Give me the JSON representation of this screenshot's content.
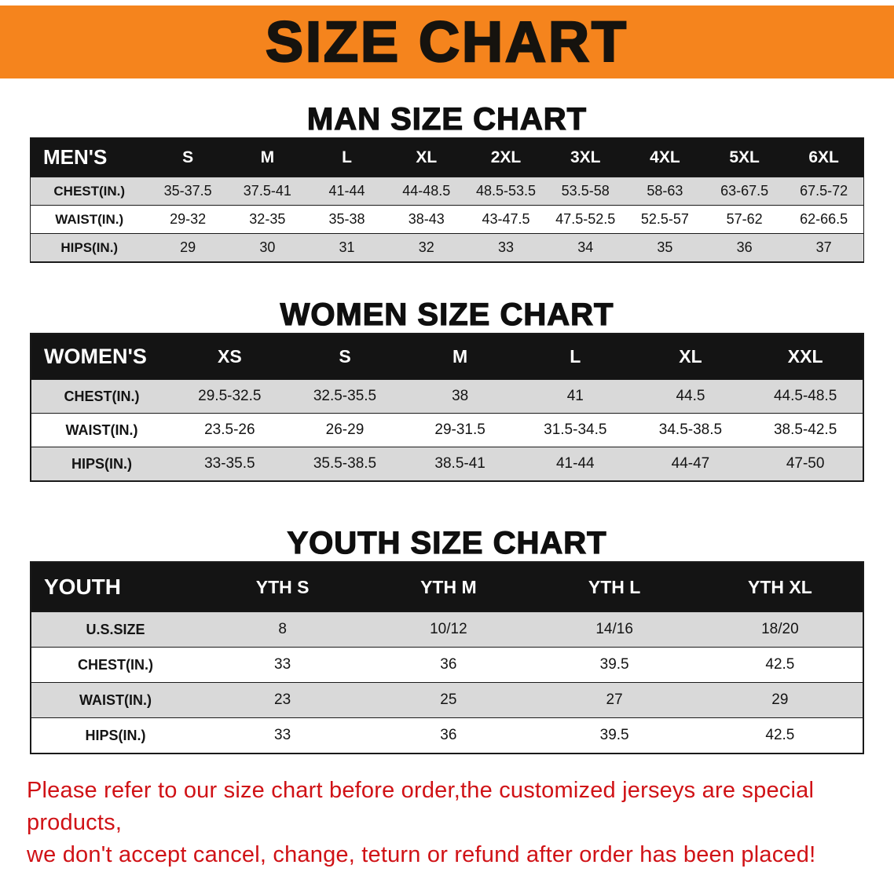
{
  "banner": {
    "title": "SIZE CHART",
    "bg_color": "#f5841d",
    "text_color": "#16130e"
  },
  "sections": [
    {
      "heading": "MAN SIZE CHART"
    },
    {
      "heading": "WOMEN SIZE CHART"
    },
    {
      "heading": "YOUTH SIZE CHART"
    }
  ],
  "chart_data": [
    {
      "type": "table",
      "title": "MAN SIZE CHART",
      "columns": [
        "MEN'S",
        "S",
        "M",
        "L",
        "XL",
        "2XL",
        "3XL",
        "4XL",
        "5XL",
        "6XL"
      ],
      "rows": [
        [
          "CHEST(IN.)",
          "35-37.5",
          "37.5-41",
          "41-44",
          "44-48.5",
          "48.5-53.5",
          "53.5-58",
          "58-63",
          "63-67.5",
          "67.5-72"
        ],
        [
          "WAIST(IN.)",
          "29-32",
          "32-35",
          "35-38",
          "38-43",
          "43-47.5",
          "47.5-52.5",
          "52.5-57",
          "57-62",
          "62-66.5"
        ],
        [
          "HIPS(IN.)",
          "29",
          "30",
          "31",
          "32",
          "33",
          "34",
          "35",
          "36",
          "37"
        ]
      ]
    },
    {
      "type": "table",
      "title": "WOMEN SIZE CHART",
      "columns": [
        "WOMEN'S",
        "XS",
        "S",
        "M",
        "L",
        "XL",
        "XXL"
      ],
      "rows": [
        [
          "CHEST(IN.)",
          "29.5-32.5",
          "32.5-35.5",
          "38",
          "41",
          "44.5",
          "44.5-48.5"
        ],
        [
          "WAIST(IN.)",
          "23.5-26",
          "26-29",
          "29-31.5",
          "31.5-34.5",
          "34.5-38.5",
          "38.5-42.5"
        ],
        [
          "HIPS(IN.)",
          "33-35.5",
          "35.5-38.5",
          "38.5-41",
          "41-44",
          "44-47",
          "47-50"
        ]
      ]
    },
    {
      "type": "table",
      "title": "YOUTH SIZE CHART",
      "columns": [
        "YOUTH",
        "YTH S",
        "YTH M",
        "YTH L",
        "YTH XL"
      ],
      "rows": [
        [
          "U.S.SIZE",
          "8",
          "10/12",
          "14/16",
          "18/20"
        ],
        [
          "CHEST(IN.)",
          "33",
          "36",
          "39.5",
          "42.5"
        ],
        [
          "WAIST(IN.)",
          "23",
          "25",
          "27",
          "29"
        ],
        [
          "HIPS(IN.)",
          "33",
          "36",
          "39.5",
          "42.5"
        ]
      ]
    }
  ],
  "disclaimer": {
    "line1": "Please refer to our size chart before order,the customized jerseys are special products,",
    "line2": "we don't accept cancel, change, teturn or refund after order has been placed!",
    "color": "#d01216"
  }
}
